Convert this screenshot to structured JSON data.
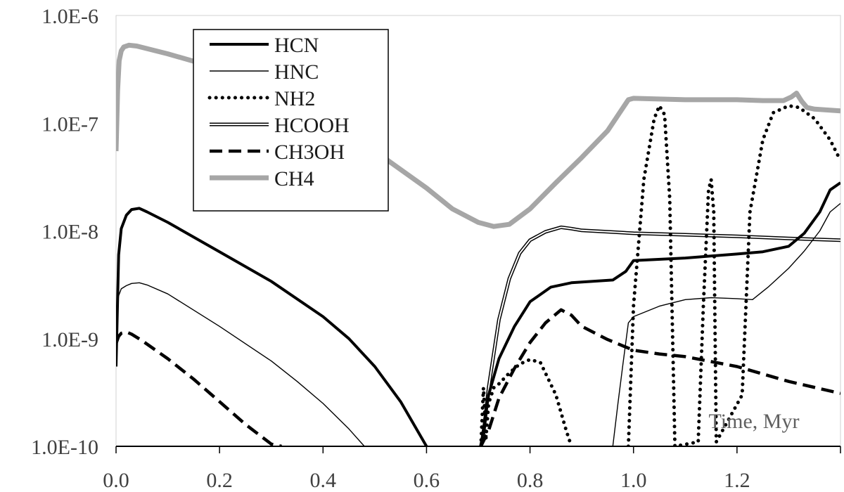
{
  "chart_data": {
    "type": "line",
    "title": "",
    "xlabel": "Time, Myr",
    "ylabel": "",
    "y_scale": "log",
    "xlim": [
      0,
      1.4
    ],
    "ylim": [
      1e-10,
      1e-06
    ],
    "x_tick_labels": [
      "0.0",
      "0.2",
      "0.4",
      "0.6",
      "0.8",
      "1.0",
      "1.2"
    ],
    "y_tick_labels": [
      "1.0E-10",
      "1.0E-9",
      "1.0E-8",
      "1.0E-7",
      "1.0E-6"
    ],
    "grid": false,
    "legend_position": "top-left",
    "series": [
      {
        "name": "HCN",
        "style": "solid-thick",
        "color": "#000000",
        "x": [
          0.0,
          0.005,
          0.01,
          0.02,
          0.03,
          0.045,
          0.06,
          0.1,
          0.2,
          0.3,
          0.4,
          0.45,
          0.5,
          0.55,
          0.6,
          0.705,
          0.72,
          0.74,
          0.77,
          0.8,
          0.84,
          0.88,
          0.96,
          0.985,
          1.0,
          1.1,
          1.2,
          1.25,
          1.3,
          1.33,
          1.36,
          1.38,
          1.4
        ],
        "y": [
          5.5e-10,
          6e-09,
          1.05e-08,
          1.4e-08,
          1.58e-08,
          1.62e-08,
          1.5e-08,
          1.2e-08,
          6.4e-09,
          3.4e-09,
          1.6e-09,
          1e-09,
          5.5e-10,
          2.6e-10,
          1e-10,
          1e-10,
          3e-10,
          6.5e-10,
          1.3e-09,
          2.2e-09,
          3e-09,
          3.3e-09,
          3.5e-09,
          4.2e-09,
          5.3e-09,
          5.6e-09,
          6.1e-09,
          6.4e-09,
          7.2e-09,
          9.5e-09,
          1.5e-08,
          2.4e-08,
          2.8e-08
        ]
      },
      {
        "name": "HNC",
        "style": "solid-thin",
        "color": "#000000",
        "x": [
          0.0,
          0.005,
          0.01,
          0.02,
          0.03,
          0.045,
          0.06,
          0.1,
          0.2,
          0.3,
          0.35,
          0.4,
          0.45,
          0.48,
          0.96,
          0.97,
          0.98,
          0.99,
          1.0,
          1.05,
          1.1,
          1.15,
          1.2,
          1.23,
          1.26,
          1.3,
          1.33,
          1.36,
          1.38,
          1.4
        ],
        "y": [
          1.6e-09,
          2.5e-09,
          2.9e-09,
          3.1e-09,
          3.25e-09,
          3.3e-09,
          3.15e-09,
          2.6e-09,
          1.3e-09,
          6.2e-10,
          4e-10,
          2.5e-10,
          1.45e-10,
          1e-10,
          1e-10,
          2.5e-10,
          6e-10,
          1.4e-09,
          1.6e-09,
          2e-09,
          2.3e-09,
          2.4e-09,
          2.35e-09,
          2.3e-09,
          3e-09,
          4.5e-09,
          6.5e-09,
          1e-08,
          1.5e-08,
          1.8e-08
        ]
      },
      {
        "name": "NH2",
        "style": "dotted",
        "color": "#000000",
        "x": [
          0.705,
          0.71,
          0.715,
          0.72,
          0.73,
          0.74,
          0.76,
          0.78,
          0.8,
          0.82,
          0.85,
          0.87,
          0.88,
          0.99,
          1.0,
          1.02,
          1.04,
          1.05,
          1.06,
          1.07,
          1.08,
          1.125,
          1.135,
          1.145,
          1.15,
          1.155,
          1.16,
          1.21,
          1.225,
          1.25,
          1.27,
          1.3,
          1.32,
          1.35,
          1.38,
          1.4
        ],
        "y": [
          1e-10,
          3.5e-10,
          1.2e-10,
          2.5e-10,
          3.5e-10,
          3.8e-10,
          4.8e-10,
          5.8e-10,
          6.4e-10,
          6e-10,
          3e-10,
          1.4e-10,
          1e-10,
          1e-10,
          2e-09,
          3e-08,
          1.1e-07,
          1.45e-07,
          1.2e-07,
          2e-08,
          1e-10,
          1.1e-10,
          2e-09,
          2.4e-08,
          3e-08,
          1.5e-08,
          1.1e-10,
          3e-10,
          1.5e-08,
          7e-08,
          1.25e-07,
          1.45e-07,
          1.4e-07,
          1.1e-07,
          7e-08,
          4.5e-08
        ]
      },
      {
        "name": "HCOOH",
        "style": "double",
        "color": "#000000",
        "x": [
          0.705,
          0.71,
          0.72,
          0.74,
          0.76,
          0.78,
          0.8,
          0.83,
          0.86,
          0.88,
          0.9,
          0.95,
          1.0,
          1.1,
          1.2,
          1.3,
          1.4
        ],
        "y": [
          1e-10,
          1.3e-10,
          3.5e-10,
          1.5e-09,
          3.6e-09,
          6.2e-09,
          8.2e-09,
          9.8e-09,
          1.08e-08,
          1.05e-08,
          1.01e-08,
          9.8e-09,
          9.5e-09,
          9.2e-09,
          8.9e-09,
          8.5e-09,
          8.2e-09
        ]
      },
      {
        "name": "CH3OH",
        "style": "dashed",
        "color": "#000000",
        "x": [
          0.0,
          0.005,
          0.01,
          0.02,
          0.03,
          0.05,
          0.1,
          0.15,
          0.2,
          0.25,
          0.3,
          0.32,
          0.705,
          0.72,
          0.74,
          0.77,
          0.8,
          0.83,
          0.86,
          0.88,
          0.9,
          0.95,
          1.0,
          1.05,
          1.1,
          1.2,
          1.3,
          1.4
        ],
        "y": [
          9e-10,
          1.05e-09,
          1.12e-09,
          1.15e-09,
          1.1e-09,
          9.6e-10,
          6.5e-10,
          4.2e-10,
          2.6e-10,
          1.6e-10,
          1.05e-10,
          1e-10,
          1e-10,
          1.4e-10,
          2.8e-10,
          5.3e-10,
          9.2e-10,
          1.4e-09,
          1.85e-09,
          1.65e-09,
          1.3e-09,
          9.8e-10,
          7.8e-10,
          7.2e-10,
          6.8e-10,
          5.5e-10,
          4e-10,
          3.1e-10
        ]
      },
      {
        "name": "CH4",
        "style": "solid-gray-thick",
        "color": "#a6a6a6",
        "x": [
          0.0,
          0.003,
          0.006,
          0.01,
          0.015,
          0.025,
          0.04,
          0.1,
          0.2,
          0.3,
          0.4,
          0.5,
          0.6,
          0.65,
          0.7,
          0.73,
          0.76,
          0.8,
          0.85,
          0.9,
          0.95,
          0.98,
          0.99,
          1.0,
          1.1,
          1.2,
          1.25,
          1.29,
          1.305,
          1.315,
          1.325,
          1.335,
          1.35,
          1.4
        ],
        "y": [
          5.5e-08,
          2e-07,
          3.8e-07,
          4.7e-07,
          5.1e-07,
          5.3e-07,
          5.2e-07,
          4.4e-07,
          3.2e-07,
          2.2e-07,
          1.2e-07,
          5.5e-08,
          2.5e-08,
          1.6e-08,
          1.2e-08,
          1.1e-08,
          1.15e-08,
          1.6e-08,
          2.8e-08,
          4.8e-08,
          8.5e-08,
          1.4e-07,
          1.65e-07,
          1.7e-07,
          1.65e-07,
          1.65e-07,
          1.62e-07,
          1.62e-07,
          1.75e-07,
          1.9e-07,
          1.6e-07,
          1.4e-07,
          1.35e-07,
          1.3e-07
        ]
      }
    ]
  }
}
